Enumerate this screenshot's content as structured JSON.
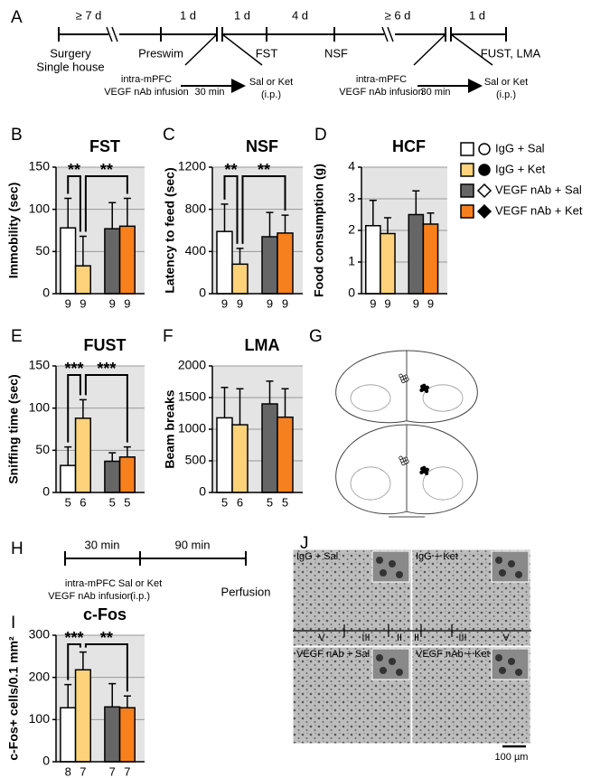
{
  "panel_letters": [
    "A",
    "B",
    "C",
    "D",
    "E",
    "F",
    "G",
    "H",
    "I",
    "J"
  ],
  "timeline_a": {
    "intervals": [
      "≥ 7 d",
      "1 d",
      "1 d",
      "4 d",
      "≥ 6 d",
      "1 d"
    ],
    "events": [
      "Surgery",
      "Single house",
      "Preswim",
      "FST",
      "NSF",
      "FUST, LMA"
    ],
    "infusion": [
      "intra-mPFC",
      "VEGF nAb infusion"
    ],
    "wait": "30 min",
    "injection": [
      "Sal or Ket",
      "(i.p.)"
    ]
  },
  "timeline_h": {
    "intervals": [
      "30 min",
      "90 min"
    ],
    "infusion": [
      "intra-mPFC",
      "VEGF nAb infusion"
    ],
    "injection": [
      "Sal or Ket",
      "(i.p.)"
    ],
    "end": "Perfusion"
  },
  "legend": [
    {
      "name": "IgG + Sal",
      "color": "#ffffff"
    },
    {
      "name": "IgG + Ket",
      "color": "#fdd27a"
    },
    {
      "name": "VEGF nAb + Sal",
      "color": "#666666"
    },
    {
      "name": "VEGF nAb + Ket",
      "color": "#f7801e"
    }
  ],
  "chart_data": [
    {
      "type": "bar",
      "title": "FST",
      "ylabel": "Immobility (sec)",
      "ylim": [
        0,
        150
      ],
      "yticks": [
        0,
        50,
        100,
        150
      ],
      "grid": true,
      "values": [
        78,
        33,
        77,
        80
      ],
      "errors": [
        35,
        35,
        31,
        33
      ],
      "n": [
        9,
        9,
        9,
        9
      ],
      "significance": [
        "**",
        "**"
      ]
    },
    {
      "type": "bar",
      "title": "NSF",
      "ylabel": "Latency to feed (sec)",
      "ylim": [
        0,
        1200
      ],
      "yticks": [
        0,
        400,
        800,
        1200
      ],
      "grid": true,
      "values": [
        590,
        280,
        540,
        575
      ],
      "errors": [
        260,
        150,
        230,
        170
      ],
      "n": [
        9,
        9,
        9,
        9
      ],
      "significance": [
        "**",
        "**"
      ]
    },
    {
      "type": "bar",
      "title": "HCF",
      "ylabel": "Food consumption (g)",
      "ylim": [
        0,
        4
      ],
      "yticks": [
        0,
        1,
        2,
        3,
        4
      ],
      "grid": true,
      "values": [
        2.15,
        1.9,
        2.5,
        2.2
      ],
      "errors": [
        0.8,
        0.5,
        0.75,
        0.35
      ],
      "n": [
        9,
        9,
        9,
        9
      ]
    },
    {
      "type": "bar",
      "title": "FUST",
      "ylabel": "Sniffing time (sec)",
      "ylim": [
        0,
        150
      ],
      "yticks": [
        0,
        50,
        100,
        150
      ],
      "grid": true,
      "values": [
        32,
        88,
        37,
        42
      ],
      "errors": [
        22,
        22,
        10,
        12
      ],
      "n": [
        5,
        6,
        5,
        5
      ],
      "significance": [
        "***",
        "***"
      ]
    },
    {
      "type": "bar",
      "title": "LMA",
      "ylabel": "Beam breaks",
      "ylim": [
        0,
        2000
      ],
      "yticks": [
        0,
        500,
        1000,
        1500,
        2000
      ],
      "grid": true,
      "values": [
        1180,
        1070,
        1400,
        1190
      ],
      "errors": [
        480,
        570,
        360,
        450
      ],
      "n": [
        5,
        6,
        5,
        5
      ]
    },
    {
      "type": "bar",
      "title": "c-Fos",
      "ylabel": "c-Fos+ cells/0.1 mm²",
      "ylim": [
        0,
        300
      ],
      "yticks": [
        0,
        100,
        200,
        300
      ],
      "grid": true,
      "values": [
        128,
        218,
        130,
        128
      ],
      "errors": [
        55,
        42,
        55,
        28
      ],
      "n": [
        8,
        7,
        7,
        7
      ],
      "significance": [
        "***",
        "**"
      ]
    }
  ],
  "micrographs": {
    "labels": [
      "IgG + Sal",
      "IgG + Ket",
      "VEGF nAb + Sal",
      "VEGF nAb + Ket"
    ],
    "layers_left": [
      "V",
      "III",
      "II"
    ],
    "layers_right": [
      "II",
      "III",
      "V"
    ],
    "scale_bar": "100 µm"
  }
}
